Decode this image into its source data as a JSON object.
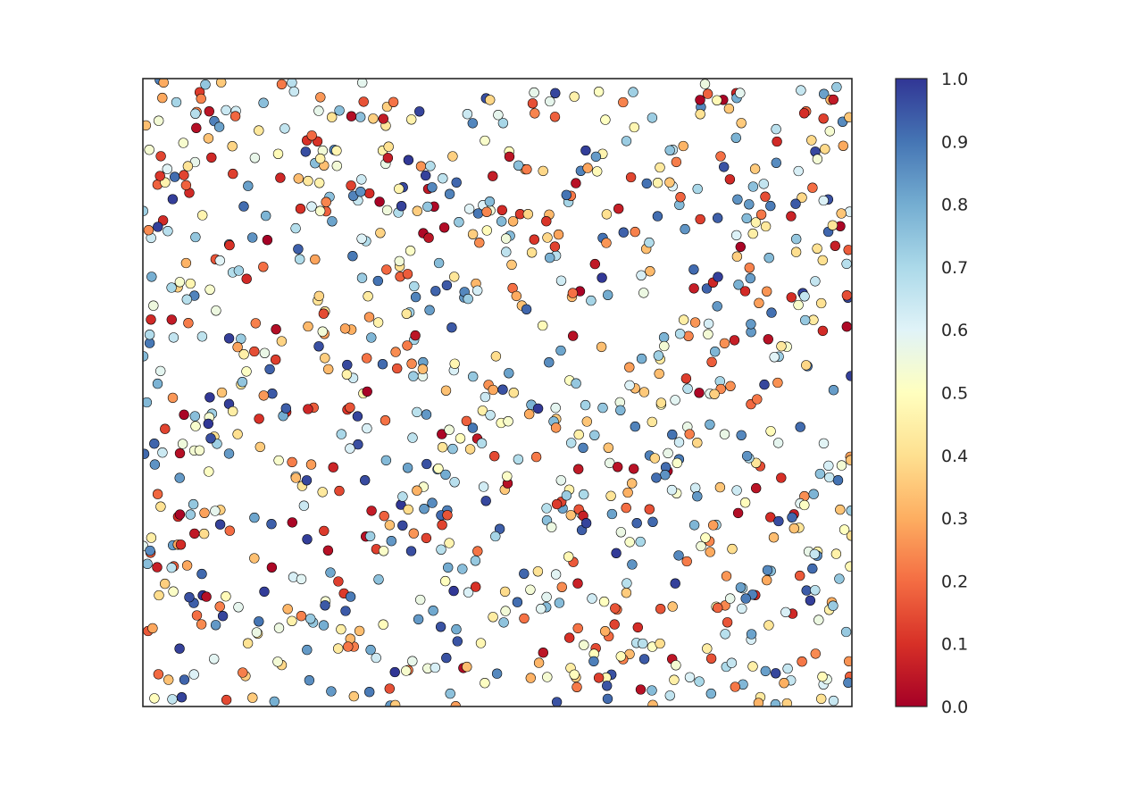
{
  "chart_data": {
    "type": "scatter",
    "title": "",
    "xlabel": "",
    "ylabel": "",
    "xlim": [
      0,
      1
    ],
    "ylim": [
      0,
      1
    ],
    "x_ticks_visible": false,
    "y_ticks_visible": false,
    "grid": false,
    "n_points": 1000,
    "distribution": "uniform random x, y and color value in [0, 1]",
    "marker": {
      "shape": "circle",
      "edgecolor": "#000000"
    },
    "colormap": {
      "name": "RdYlBu",
      "range": [
        0.0,
        1.0
      ],
      "stops": [
        "#a50026",
        "#d73027",
        "#f46d43",
        "#fdae61",
        "#fee090",
        "#ffffbf",
        "#e0f3f8",
        "#abd9e9",
        "#74add1",
        "#4575b4",
        "#313695"
      ]
    },
    "colorbar": {
      "position": "right",
      "ticks": [
        "0.0",
        "0.1",
        "0.2",
        "0.3",
        "0.4",
        "0.5",
        "0.6",
        "0.7",
        "0.8",
        "0.9",
        "1.0"
      ]
    }
  }
}
